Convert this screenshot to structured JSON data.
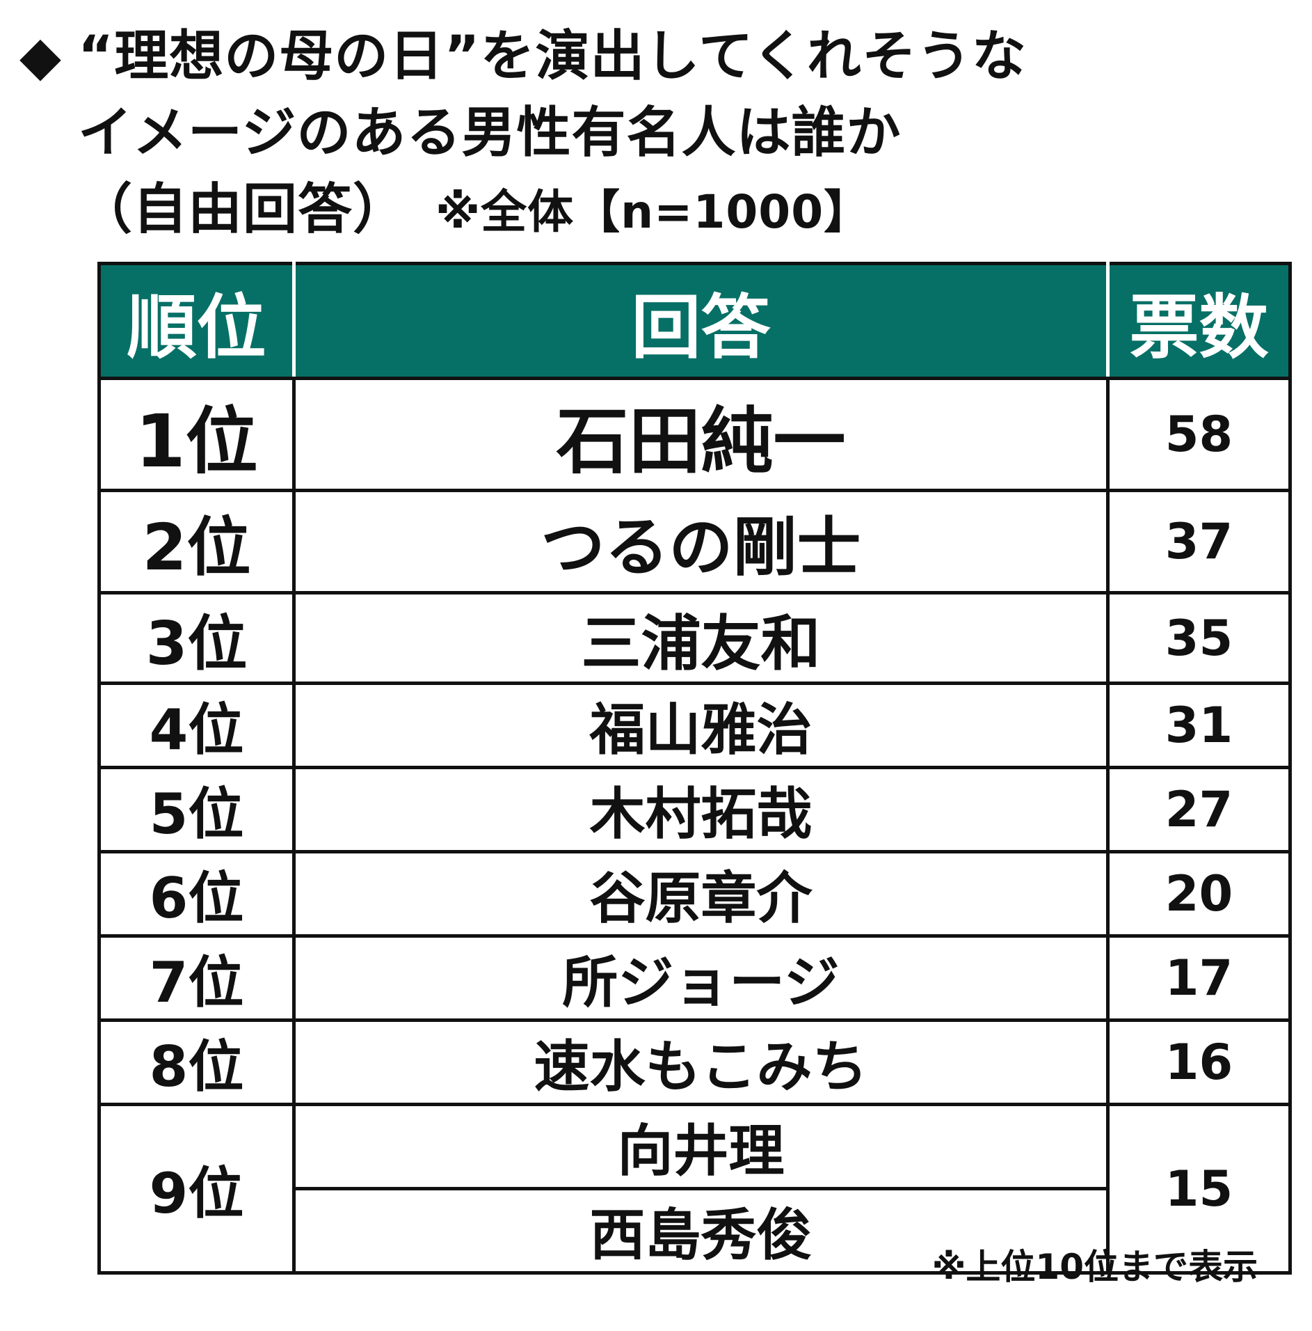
{
  "title": {
    "marker": "◆",
    "line1": "“理想の母の日”を演出してくれそうな",
    "line2": "イメージのある男性有名人は誰か",
    "line3": "（自由回答）",
    "note": "※全体【n=1000】"
  },
  "table": {
    "headers": {
      "rank": "順位",
      "answer": "回答",
      "votes": "票数"
    },
    "rows": [
      {
        "rank": "1位",
        "answer": "石田純一",
        "votes": "58"
      },
      {
        "rank": "2位",
        "answer": "つるの剛士",
        "votes": "37"
      },
      {
        "rank": "3位",
        "answer": "三浦友和",
        "votes": "35"
      },
      {
        "rank": "4位",
        "answer": "福山雅治",
        "votes": "31"
      },
      {
        "rank": "5位",
        "answer": "木村拓哉",
        "votes": "27"
      },
      {
        "rank": "6位",
        "answer": "谷原章介",
        "votes": "20"
      },
      {
        "rank": "7位",
        "answer": "所ジョージ",
        "votes": "17"
      },
      {
        "rank": "8位",
        "answer": "速水もこみち",
        "votes": "16"
      },
      {
        "rank": "9位",
        "answer": "向井理",
        "votes": "15"
      },
      {
        "answer": "西島秀俊"
      }
    ],
    "header_color": "#077066"
  },
  "footnote": "※上位10位まで表示"
}
